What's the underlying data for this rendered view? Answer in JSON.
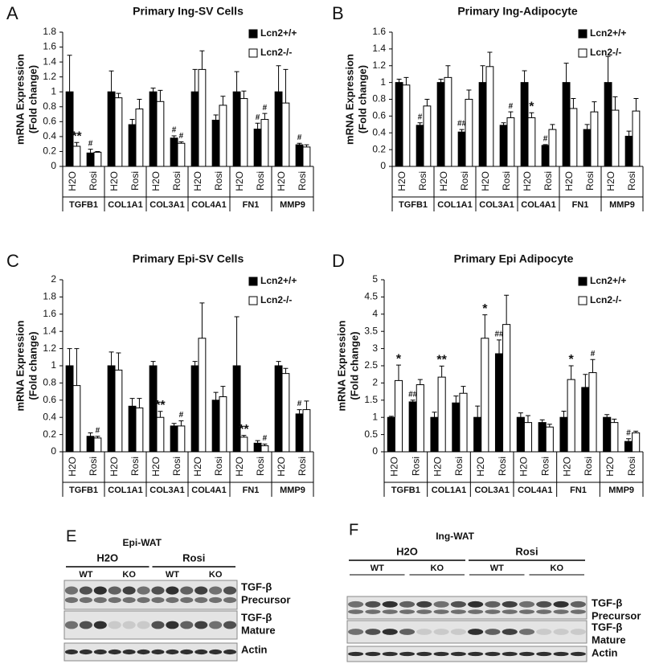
{
  "chart_data": [
    {
      "type": "bar",
      "panel": "A",
      "title": "Primary Ing-SV Cells",
      "ylabel": [
        "mRNA Expression",
        "(Fold change)"
      ],
      "categories": [
        "H2O",
        "Rosi",
        "H2O",
        "Rosi",
        "H2O",
        "Rosi",
        "H2O",
        "Rosi",
        "H2O",
        "Rosi",
        "H2O",
        "Rosi"
      ],
      "groups": [
        "TGFB1",
        "COL1A1",
        "COL3A1",
        "COL4A1",
        "FN1",
        "MMP9"
      ],
      "ylim": [
        0,
        1.8
      ],
      "yticks": [
        0,
        0.2,
        0.4,
        0.6,
        0.8,
        1,
        1.2,
        1.4,
        1.6,
        1.8
      ],
      "legend": "upper right",
      "series": [
        {
          "name": "Lcn2+/+",
          "color": "#000000",
          "values": [
            1,
            0.18,
            1,
            0.56,
            1,
            0.38,
            1,
            0.62,
            1,
            0.5,
            1,
            0.29
          ],
          "errors": [
            0.49,
            0.05,
            0.28,
            0.07,
            0.05,
            0.03,
            0.3,
            0.07,
            0.27,
            0.08,
            0.35,
            0.02
          ],
          "annotations": [
            null,
            "#",
            null,
            null,
            null,
            "#",
            null,
            null,
            null,
            "#",
            null,
            "#"
          ]
        },
        {
          "name": "Lcn2-/-",
          "color": "#ffffff",
          "values": [
            0.27,
            0.19,
            0.92,
            0.77,
            0.87,
            0.31,
            1.3,
            0.82,
            0.91,
            0.63,
            0.85,
            0.26
          ],
          "errors": [
            0.05,
            0.01,
            0.06,
            0.13,
            0.15,
            0.02,
            0.25,
            0.12,
            0.1,
            0.08,
            0.45,
            0.03
          ],
          "annotations": [
            "**",
            null,
            null,
            null,
            null,
            "#",
            null,
            null,
            null,
            "#",
            null,
            null
          ]
        }
      ]
    },
    {
      "type": "bar",
      "panel": "B",
      "title": "Primary Ing-Adipocyte",
      "ylabel": [
        "mRNA Expression",
        "(Fold change)"
      ],
      "categories": [
        "H2O",
        "Rosi",
        "H2O",
        "Rosi",
        "H2O",
        "Rosi",
        "H2O",
        "Rosi",
        "H2O",
        "Rosi",
        "H2O",
        "Rosi"
      ],
      "groups": [
        "TGFB1",
        "COL1A1",
        "COL3A1",
        "COL4A1",
        "FN1",
        "MMP9"
      ],
      "ylim": [
        0,
        1.6
      ],
      "yticks": [
        0,
        0.2,
        0.4,
        0.6,
        0.8,
        1,
        1.2,
        1.4,
        1.6
      ],
      "legend": "upper right",
      "series": [
        {
          "name": "Lcn2+/+",
          "color": "#000000",
          "values": [
            1,
            0.49,
            1,
            0.41,
            1,
            0.49,
            1,
            0.25,
            1,
            0.44,
            1,
            0.36
          ],
          "errors": [
            0.04,
            0.03,
            0.04,
            0.03,
            0.2,
            0.03,
            0.14,
            0.01,
            0.23,
            0.06,
            0.31,
            0.06
          ],
          "annotations": [
            null,
            "#",
            null,
            "##",
            null,
            null,
            null,
            "#",
            null,
            null,
            null,
            null
          ]
        },
        {
          "name": "Lcn2-/-",
          "color": "#ffffff",
          "values": [
            0.97,
            0.72,
            1.06,
            0.8,
            1.19,
            0.58,
            0.58,
            0.44,
            0.69,
            0.65,
            0.67,
            0.66
          ],
          "errors": [
            0.09,
            0.08,
            0.14,
            0.11,
            0.17,
            0.07,
            0.06,
            0.06,
            0.12,
            0.12,
            0.16,
            0.15
          ],
          "annotations": [
            null,
            null,
            null,
            null,
            null,
            "#",
            "*",
            null,
            null,
            null,
            null,
            null
          ]
        }
      ]
    },
    {
      "type": "bar",
      "panel": "C",
      "title": "Primary Epi-SV Cells",
      "ylabel": [
        "mRNA Expression",
        "(Fold change)"
      ],
      "categories": [
        "H2O",
        "Rosi",
        "H2O",
        "Rosi",
        "H2O",
        "Rosi",
        "H2O",
        "Rosi",
        "H2O",
        "Rosi",
        "H2O",
        "Rosi"
      ],
      "groups": [
        "TGFB1",
        "COL1A1",
        "COL3A1",
        "COL4A1",
        "FN1",
        "MMP9"
      ],
      "ylim": [
        0,
        2
      ],
      "yticks": [
        0,
        0.2,
        0.4,
        0.6,
        0.8,
        1,
        1.2,
        1.4,
        1.6,
        1.8,
        2
      ],
      "legend": "upper right",
      "series": [
        {
          "name": "Lcn2+/+",
          "color": "#000000",
          "values": [
            1,
            0.18,
            1,
            0.53,
            1,
            0.3,
            1,
            0.6,
            1,
            0.1,
            1,
            0.44
          ],
          "errors": [
            0.2,
            0.04,
            0.16,
            0.09,
            0.05,
            0.03,
            0.05,
            0.09,
            0.57,
            0.03,
            0.05,
            0.05
          ],
          "annotations": [
            null,
            null,
            null,
            null,
            null,
            null,
            null,
            null,
            null,
            null,
            null,
            "#"
          ]
        },
        {
          "name": "Lcn2-/-",
          "color": "#ffffff",
          "values": [
            0.77,
            0.16,
            0.95,
            0.51,
            0.4,
            0.3,
            1.32,
            0.64,
            0.17,
            0.07,
            0.91,
            0.49
          ],
          "errors": [
            0.43,
            0.02,
            0.2,
            0.11,
            0.07,
            0.06,
            0.41,
            0.12,
            0.02,
            0.02,
            0.06,
            0.1
          ],
          "annotations": [
            null,
            "#",
            null,
            null,
            "**",
            "#",
            null,
            null,
            "**",
            "#",
            null,
            null
          ]
        }
      ]
    },
    {
      "type": "bar",
      "panel": "D",
      "title": "Primary Epi Adipocyte",
      "ylabel": [
        "mRNA Expression",
        "(Fold change)"
      ],
      "categories": [
        "H2O",
        "Rosi",
        "H2O",
        "Rosi",
        "H2O",
        "Rosi",
        "H2O",
        "Rosi",
        "H2O",
        "Rosi",
        "H2O",
        "Rosi"
      ],
      "groups": [
        "TGFB1",
        "COL1A1",
        "COL3A1",
        "COL4A1",
        "FN1",
        "MMP9"
      ],
      "ylim": [
        0,
        5
      ],
      "yticks": [
        0,
        0.5,
        1,
        1.5,
        2,
        2.5,
        3,
        3.5,
        4,
        4.5,
        5
      ],
      "legend": "upper right",
      "series": [
        {
          "name": "Lcn2+/+",
          "color": "#000000",
          "values": [
            1,
            1.45,
            1,
            1.42,
            1,
            2.85,
            1,
            0.85,
            1,
            1.87,
            1,
            0.3
          ],
          "errors": [
            0.03,
            0.05,
            0.15,
            0.2,
            0.33,
            0.4,
            0.13,
            0.08,
            0.18,
            0.38,
            0.08,
            0.08
          ],
          "annotations": [
            null,
            "##",
            null,
            null,
            null,
            "##",
            null,
            null,
            null,
            null,
            null,
            "#"
          ]
        },
        {
          "name": "Lcn2-/-",
          "color": "#ffffff",
          "values": [
            2.07,
            1.95,
            2.17,
            1.7,
            3.3,
            3.7,
            0.85,
            0.72,
            2.1,
            2.3,
            0.85,
            0.55
          ],
          "errors": [
            0.45,
            0.15,
            0.32,
            0.2,
            0.68,
            0.85,
            0.2,
            0.08,
            0.4,
            0.38,
            0.1,
            0.05
          ],
          "annotations": [
            "*",
            null,
            "**",
            null,
            "*",
            null,
            null,
            null,
            "*",
            "#",
            null,
            null
          ]
        }
      ]
    }
  ],
  "blots": [
    {
      "panel": "E",
      "title": "Epi-WAT",
      "treatments": [
        "H2O",
        "Rosi"
      ],
      "genotypes": [
        "WT",
        "KO",
        "WT",
        "KO"
      ],
      "rows": [
        [
          "TGF-β",
          "Precursor"
        ],
        [
          "TGF-β",
          "Mature"
        ],
        [
          "Actin"
        ]
      ]
    },
    {
      "panel": "F",
      "title": "Ing-WAT",
      "treatments": [
        "H2O",
        "Rosi"
      ],
      "genotypes": [
        "WT",
        "KO",
        "WT",
        "KO"
      ],
      "rows": [
        [
          "TGF-β",
          "Precursor"
        ],
        [
          "TGF-β",
          "Mature"
        ],
        [
          "Actin"
        ]
      ]
    }
  ]
}
